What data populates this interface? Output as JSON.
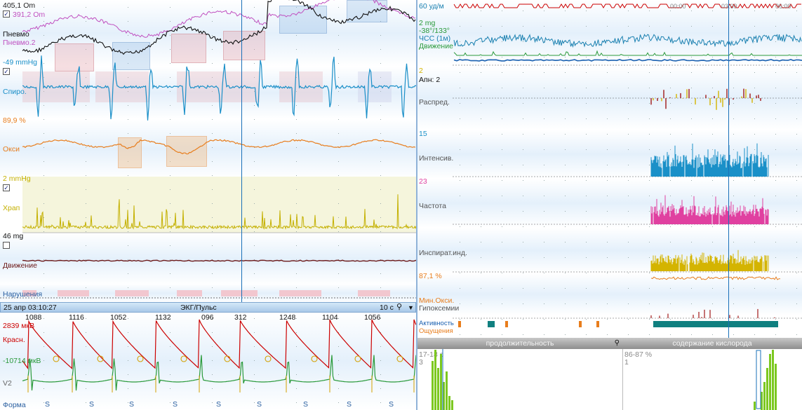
{
  "left_panel": {
    "pneumo": {
      "value1": "405,1 Om",
      "value2": "391,2 Om",
      "label": "Пневмо",
      "label2": "Пневмо.2",
      "checked": true
    },
    "spiro": {
      "value": "-49 mmHg",
      "label": "Спиро.",
      "checked": true
    },
    "oxy": {
      "value": "89,9 %",
      "label": "Окси"
    },
    "snore": {
      "value": "2 mmHg",
      "label": "Храп",
      "checked": true
    },
    "movement": {
      "value": "46 mg",
      "label": "Движение",
      "checked": false
    },
    "violations": {
      "label": "Нарушения"
    }
  },
  "ecg_panel": {
    "datetime": "25 апр 03:10:27",
    "title": "ЭКГ/Пульс",
    "scale": "10 с",
    "rr_intervals": [
      "1088",
      "1116",
      "1052",
      "1132",
      "096",
      "312",
      "1248",
      "1104",
      "1056"
    ],
    "red_value": "2839 мкВ",
    "red_label": "Красн.",
    "green_value": "-10714 мкВ",
    "lead_label": "V2",
    "form_label": "Форма",
    "beat_marker": "S"
  },
  "right_panel": {
    "hr": {
      "value": "60 уд/м"
    },
    "motion": {
      "value": "2 mg",
      "range": "-38°/133°",
      "label_hr": "ЧСС (1м)",
      "label_motion": "Движение"
    },
    "apnea": {
      "value": "2",
      "label": "Апн: 2"
    },
    "distribution": {
      "label": "Распред."
    },
    "intensity": {
      "value": "15",
      "label": "Интенсив."
    },
    "frequency": {
      "value": "23",
      "label": "Частота"
    },
    "inspiratory": {
      "label": "Инспират.инд."
    },
    "min_oxy": {
      "value": "87,1 %",
      "label": "Мин.Окси.",
      "label2": "Гипоксемии"
    },
    "activity": {
      "label": "Активность",
      "label2": "Ощущения"
    },
    "time_labels": [
      "00:00",
      "03:00",
      "06:00"
    ]
  },
  "bottom_right": {
    "left_tab": "продолжительность",
    "right_tab": "содержание кислорода",
    "left_bin": "17-18 с",
    "left_count": "3",
    "right_bin": "86-87 %",
    "right_count": "1"
  },
  "colors": {
    "pneumo": "#111111",
    "pneumo2": "#c050c0",
    "spiro": "#1a8fc8",
    "oxy": "#e87d1c",
    "snore": "#c4b000",
    "ecg_red": "#cc0000",
    "ecg_green": "#2a9a3a",
    "cursor": "#1a70b8"
  }
}
